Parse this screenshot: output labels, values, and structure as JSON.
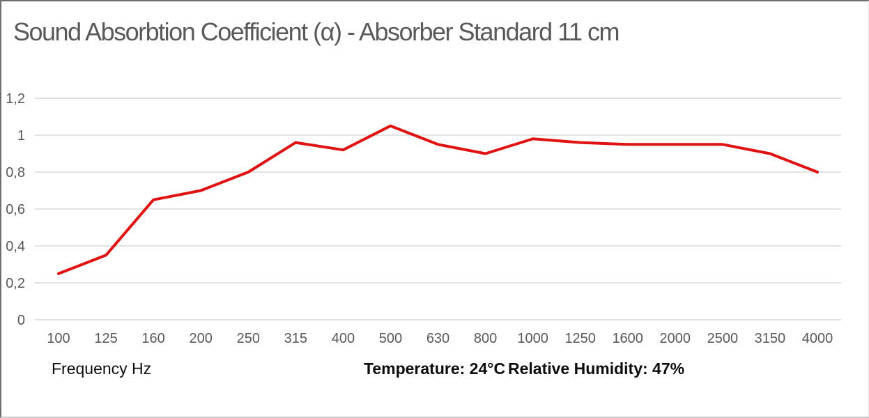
{
  "chart": {
    "title": "Sound Absorbtion Coefficient (α) - Absorber Standard 11 cm"
  },
  "footer": {
    "x_axis_label": "Frequency Hz",
    "temperature_label": "Temperature:",
    "temperature_value": "24°C",
    "humidity_label": "Relative Humidity:",
    "humidity_value": "47%"
  },
  "colors": {
    "line": "#e01212",
    "grid": "#d9d9d9",
    "axis_text": "#595959",
    "title_text": "#595959"
  },
  "chart_data": {
    "type": "line",
    "title": "Sound Absorbtion Coefficient (α) - Absorber Standard 11 cm",
    "xlabel": "Frequency Hz",
    "ylabel": "",
    "categories": [
      "100",
      "125",
      "160",
      "200",
      "250",
      "315",
      "400",
      "500",
      "630",
      "800",
      "1000",
      "1250",
      "1600",
      "2000",
      "2500",
      "3150",
      "4000"
    ],
    "series": [
      {
        "name": "Absorber Standard 11 cm",
        "values": [
          0.25,
          0.35,
          0.65,
          0.7,
          0.8,
          0.96,
          0.92,
          1.05,
          0.95,
          0.9,
          0.98,
          0.96,
          0.95,
          0.95,
          0.95,
          0.9,
          0.8
        ]
      }
    ],
    "ylim": [
      0,
      1.2
    ],
    "ytick_values": [
      0,
      0.2,
      0.4,
      0.6,
      0.8,
      1.0,
      1.2
    ],
    "ytick_labels": [
      "0",
      "0,2",
      "0,4",
      "0,6",
      "0,8",
      "1",
      "1,2"
    ],
    "grid": true,
    "legend": false,
    "line_color": "#e01212",
    "annotations": [
      "Temperature: 24°C",
      "Relative Humidity: 47%"
    ]
  }
}
